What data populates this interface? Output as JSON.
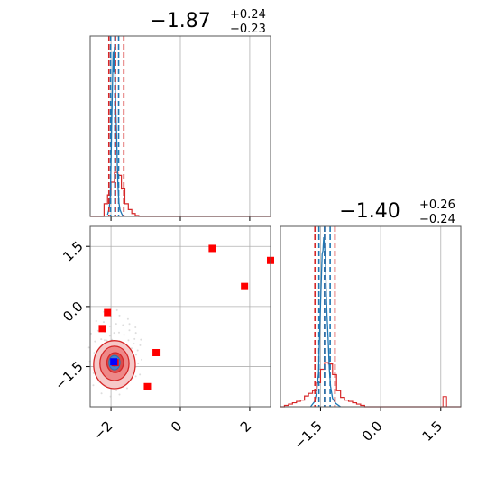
{
  "chart_data": [
    {
      "type": "histogram",
      "panel": "top-left",
      "title": {
        "median": "−1.87",
        "plus": "+0.24",
        "minus": "−0.23"
      },
      "xlim": [
        -2.6,
        2.6
      ],
      "x_ticks": [
        -2,
        0,
        2
      ],
      "x_ticklabels_shown": false,
      "grid": true,
      "quantile_lines": {
        "red": [
          -2.06,
          -1.87,
          -1.63
        ],
        "blue": [
          -2.01,
          -1.89,
          -1.78
        ]
      },
      "red_hist": {
        "edges": [
          -2.2,
          -2.1,
          -2.0,
          -1.9,
          -1.8,
          -1.7,
          -1.6,
          -1.5,
          -1.4,
          -1.3,
          -1.2
        ],
        "counts": [
          0.13,
          0.22,
          0.35,
          0.45,
          0.42,
          0.28,
          0.13,
          0.07,
          0.03,
          0.01
        ],
        "peak": 0.45
      },
      "blue_curve": {
        "x": [
          -2.1,
          -2.05,
          -2.02,
          -2.0,
          -1.98,
          -1.96,
          -1.94,
          -1.92,
          -1.9,
          -1.88,
          -1.86,
          -1.84,
          -1.82,
          -1.8,
          -1.77,
          -1.74,
          -1.7,
          -1.65
        ],
        "y": [
          0.01,
          0.05,
          0.12,
          0.3,
          0.55,
          0.75,
          0.97,
          0.85,
          1.0,
          0.78,
          0.62,
          0.5,
          0.32,
          0.18,
          0.08,
          0.04,
          0.02,
          0.0
        ]
      }
    },
    {
      "type": "scatter-contour",
      "panel": "bottom-left",
      "xlim": [
        -2.6,
        2.6
      ],
      "ylim": [
        -2.5,
        2.0
      ],
      "x_ticks": [
        -2,
        0,
        2
      ],
      "x_ticklabels": [
        "−2",
        "0",
        "2"
      ],
      "y_ticks": [
        -1.5,
        0.0,
        1.5
      ],
      "y_ticklabels": [
        "−1.5",
        "0.0",
        "1.5"
      ],
      "grid": true,
      "red_points": [
        {
          "x": 0.92,
          "y": 1.45
        },
        {
          "x": 2.6,
          "y": 1.15
        },
        {
          "x": 1.85,
          "y": 0.5
        },
        {
          "x": -2.1,
          "y": -0.15
        },
        {
          "x": -2.25,
          "y": -0.55
        },
        {
          "x": -0.7,
          "y": -1.15
        },
        {
          "x": -0.95,
          "y": -2.0
        }
      ],
      "red_contours": [
        {
          "cx": -1.9,
          "cy": -1.45,
          "rx": 0.6,
          "ry": 0.6
        },
        {
          "cx": -1.9,
          "cy": -1.42,
          "rx": 0.42,
          "ry": 0.43
        },
        {
          "cx": -1.88,
          "cy": -1.4,
          "rx": 0.24,
          "ry": 0.25
        }
      ],
      "blue_contours": [
        {
          "cx": -1.9,
          "cy": -1.4,
          "rx": 0.16,
          "ry": 0.18
        },
        {
          "cx": -1.9,
          "cy": -1.4,
          "rx": 0.08,
          "ry": 0.09
        }
      ],
      "red_marker": {
        "x": -1.88,
        "y": -1.4
      },
      "blue_marker": {
        "x": -1.92,
        "y": -1.38
      }
    },
    {
      "type": "histogram",
      "panel": "bottom-right",
      "title": {
        "median": "−1.40",
        "plus": "+0.26",
        "minus": "−0.24"
      },
      "xlim": [
        -2.5,
        2.0
      ],
      "x_ticks": [
        -1.5,
        0.0,
        1.5
      ],
      "x_ticklabels": [
        "−1.5",
        "0.0",
        "1.5"
      ],
      "grid": true,
      "quantile_lines": {
        "red": [
          -1.64,
          -1.4,
          -1.14
        ],
        "blue": [
          -1.54,
          -1.4,
          -1.26
        ]
      },
      "red_hist": {
        "edges": [
          -2.4,
          -2.3,
          -2.2,
          -2.1,
          -2.0,
          -1.9,
          -1.8,
          -1.7,
          -1.6,
          -1.5,
          -1.4,
          -1.3,
          -1.2,
          -1.1,
          -1.0,
          -0.9,
          -0.8,
          -0.7,
          -0.6,
          -0.5,
          -0.4
        ],
        "counts": [
          0.01,
          0.02,
          0.03,
          0.04,
          0.05,
          0.08,
          0.1,
          0.12,
          0.18,
          0.28,
          0.33,
          0.32,
          0.24,
          0.12,
          0.07,
          0.05,
          0.04,
          0.03,
          0.02,
          0.01
        ],
        "peak": 0.33
      },
      "blue_curve": {
        "x": [
          -1.75,
          -1.65,
          -1.6,
          -1.55,
          -1.52,
          -1.49,
          -1.46,
          -1.44,
          -1.42,
          -1.4,
          -1.38,
          -1.36,
          -1.34,
          -1.31,
          -1.28,
          -1.25,
          -1.2,
          -1.12,
          -1.0
        ],
        "y": [
          0.0,
          0.03,
          0.08,
          0.2,
          0.45,
          0.68,
          0.9,
          0.92,
          1.0,
          0.95,
          0.88,
          0.7,
          0.55,
          0.4,
          0.22,
          0.12,
          0.05,
          0.02,
          0.0
        ]
      },
      "outlier_spike": {
        "x": 1.6,
        "height": 0.06
      }
    }
  ],
  "colors": {
    "red": "#d62728",
    "blue": "#1f77b4",
    "fill_blue": "#1f4fd6",
    "grid": "#b0b0b0"
  }
}
